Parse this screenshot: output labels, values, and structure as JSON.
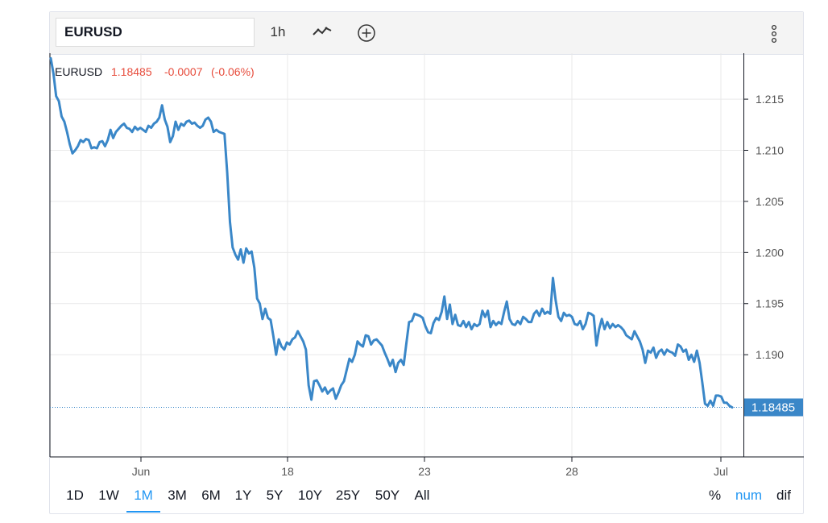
{
  "toolbar": {
    "symbol_value": "EURUSD",
    "interval_label": "1h",
    "chart_style_icon": "line-chart-icon",
    "compare_icon": "plus-circle-icon",
    "menu_icon": "vertical-dots-icon"
  },
  "legend": {
    "symbol": "EURUSD",
    "price": "1.18485",
    "change": "-0.0007",
    "change_pct": "(-0.06%)"
  },
  "price_label": "1.18485",
  "colors": {
    "line": "#3a87c8",
    "down": "#e74c3c",
    "price_tag": "#3a87c8",
    "active": "#2196f3"
  },
  "ranges": [
    "1D",
    "1W",
    "1M",
    "3M",
    "6M",
    "1Y",
    "5Y",
    "10Y",
    "25Y",
    "50Y",
    "All"
  ],
  "active_range": "1M",
  "scale_modes": [
    "%",
    "num",
    "dif"
  ],
  "active_scale": "num",
  "chart_data": {
    "type": "line",
    "series": [
      {
        "values": [
          1.219,
          1.2175,
          1.2153,
          1.2148,
          1.2133,
          1.2128,
          1.2118,
          1.2106,
          1.2097,
          1.21,
          1.2104,
          1.211,
          1.2108,
          1.2111,
          1.211,
          1.2102,
          1.2103,
          1.2102,
          1.2108,
          1.2109,
          1.2104,
          1.211,
          1.212,
          1.2112,
          1.2118,
          1.2121,
          1.2124,
          1.2126,
          1.2122,
          1.2121,
          1.2118,
          1.2123,
          1.212,
          1.2122,
          1.212,
          1.2118,
          1.2124,
          1.2122,
          1.2126,
          1.2128,
          1.2132,
          1.2144,
          1.213,
          1.2123,
          1.2108,
          1.2114,
          1.2128,
          1.212,
          1.2126,
          1.2124,
          1.2128,
          1.2129,
          1.2126,
          1.2127,
          1.2124,
          1.2122,
          1.2124,
          1.213,
          1.2132,
          1.2128,
          1.2118,
          1.212,
          1.2118,
          1.2117,
          1.2116,
          1.2078,
          1.203,
          1.2005,
          1.1998,
          1.1993,
          1.2003,
          1.199,
          1.2004,
          1.1999,
          1.2001,
          1.1985,
          1.1955,
          1.195,
          1.1935,
          1.1945,
          1.1936,
          1.1934,
          1.1918,
          1.19,
          1.1915,
          1.1908,
          1.1905,
          1.1912,
          1.191,
          1.1915,
          1.1917,
          1.1923,
          1.1918,
          1.1913,
          1.1905,
          1.187,
          1.1856,
          1.1874,
          1.1875,
          1.187,
          1.1864,
          1.1868,
          1.1862,
          1.1865,
          1.1867,
          1.1857,
          1.1863,
          1.187,
          1.1874,
          1.1885,
          1.1896,
          1.1893,
          1.19,
          1.1913,
          1.191,
          1.1908,
          1.1919,
          1.1918,
          1.191,
          1.1914,
          1.1915,
          1.1912,
          1.1909,
          1.1902,
          1.1896,
          1.1889,
          1.1895,
          1.1883,
          1.1892,
          1.1895,
          1.189,
          1.1911,
          1.1932,
          1.1933,
          1.194,
          1.1939,
          1.1938,
          1.1936,
          1.1928,
          1.1922,
          1.1921,
          1.1931,
          1.1936,
          1.1934,
          1.1942,
          1.1957,
          1.1935,
          1.1949,
          1.193,
          1.1939,
          1.1929,
          1.1928,
          1.1933,
          1.1927,
          1.1932,
          1.1925,
          1.193,
          1.1928,
          1.193,
          1.1943,
          1.1937,
          1.1943,
          1.1927,
          1.1933,
          1.1929,
          1.1932,
          1.193,
          1.1942,
          1.1952,
          1.1935,
          1.193,
          1.1929,
          1.1933,
          1.193,
          1.1937,
          1.1935,
          1.1932,
          1.1932,
          1.194,
          1.1943,
          1.1938,
          1.1945,
          1.194,
          1.1942,
          1.194,
          1.1975,
          1.1953,
          1.1937,
          1.1933,
          1.1941,
          1.1938,
          1.1939,
          1.1937,
          1.193,
          1.1929,
          1.1933,
          1.1925,
          1.193,
          1.1941,
          1.194,
          1.1938,
          1.1909,
          1.1925,
          1.1935,
          1.1925,
          1.1932,
          1.1926,
          1.193,
          1.1927,
          1.1929,
          1.1927,
          1.1924,
          1.1919,
          1.1917,
          1.1915,
          1.1923,
          1.1918,
          1.1913,
          1.1905,
          1.1892,
          1.1904,
          1.1902,
          1.1907,
          1.1897,
          1.1903,
          1.1905,
          1.19,
          1.1905,
          1.1903,
          1.1902,
          1.1899,
          1.191,
          1.1908,
          1.1903,
          1.1905,
          1.1895,
          1.19,
          1.1893,
          1.1904,
          1.1892,
          1.1873,
          1.1852,
          1.185,
          1.1855,
          1.185,
          1.186,
          1.186,
          1.1859,
          1.1853,
          1.1853,
          1.185,
          1.18485
        ]
      }
    ],
    "ylim": [
      1.18,
      1.2195
    ],
    "y_ticks": [
      "1.215",
      "1.210",
      "1.205",
      "1.200",
      "1.195",
      "1.190"
    ],
    "x_ticks": [
      "Jun",
      "18",
      "23",
      "28",
      "Jul"
    ],
    "last_value": 1.18485,
    "grid": true,
    "legend": "top-left"
  }
}
